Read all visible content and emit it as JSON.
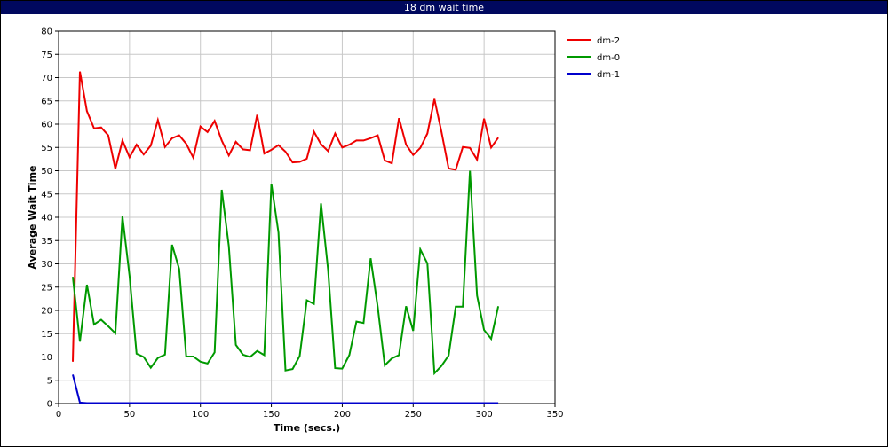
{
  "window": {
    "title": "18 dm wait time"
  },
  "chart_data": {
    "type": "line",
    "title": "",
    "xlabel": "Time (secs.)",
    "ylabel": "Average Wait Time",
    "xlim": [
      0,
      350
    ],
    "ylim": [
      0,
      80
    ],
    "x_ticks": [
      0,
      50,
      100,
      150,
      200,
      250,
      300,
      350
    ],
    "y_ticks": [
      0,
      5,
      10,
      15,
      20,
      25,
      30,
      35,
      40,
      45,
      50,
      55,
      60,
      65,
      70,
      75,
      80
    ],
    "grid": true,
    "legend_position": "top-right-outside",
    "series": [
      {
        "name": "dm-2",
        "color": "#ee0000",
        "points": [
          [
            10,
            9
          ],
          [
            15,
            71.3
          ],
          [
            20,
            62.8
          ],
          [
            25,
            59.1
          ],
          [
            30,
            59.3
          ],
          [
            35,
            57.6
          ],
          [
            40,
            50.4
          ],
          [
            45,
            56.5
          ],
          [
            50,
            52.9
          ],
          [
            55,
            55.6
          ],
          [
            60,
            53.5
          ],
          [
            65,
            55.4
          ],
          [
            70,
            60.9
          ],
          [
            75,
            55.1
          ],
          [
            80,
            57
          ],
          [
            85,
            57.6
          ],
          [
            90,
            55.8
          ],
          [
            95,
            52.8
          ],
          [
            100,
            59.5
          ],
          [
            105,
            58.3
          ],
          [
            110,
            60.7
          ],
          [
            115,
            56.5
          ],
          [
            120,
            53.3
          ],
          [
            125,
            56.2
          ],
          [
            130,
            54.6
          ],
          [
            135,
            54.4
          ],
          [
            140,
            62
          ],
          [
            145,
            53.7
          ],
          [
            150,
            54.5
          ],
          [
            155,
            55.5
          ],
          [
            160,
            54.1
          ],
          [
            165,
            51.8
          ],
          [
            170,
            51.9
          ],
          [
            175,
            52.6
          ],
          [
            180,
            58.4
          ],
          [
            185,
            55.7
          ],
          [
            190,
            54.2
          ],
          [
            195,
            58
          ],
          [
            200,
            55
          ],
          [
            205,
            55.6
          ],
          [
            210,
            56.5
          ],
          [
            215,
            56.5
          ],
          [
            220,
            57
          ],
          [
            225,
            57.6
          ],
          [
            230,
            52.2
          ],
          [
            235,
            51.6
          ],
          [
            240,
            61.3
          ],
          [
            245,
            55.6
          ],
          [
            250,
            53.4
          ],
          [
            255,
            54.9
          ],
          [
            260,
            58
          ],
          [
            265,
            65.4
          ],
          [
            270,
            58.3
          ],
          [
            275,
            50.5
          ],
          [
            280,
            50.2
          ],
          [
            285,
            55.1
          ],
          [
            290,
            54.9
          ],
          [
            295,
            52.4
          ],
          [
            300,
            61.2
          ],
          [
            305,
            55
          ],
          [
            310,
            57.1
          ]
        ]
      },
      {
        "name": "dm-0",
        "color": "#009900",
        "points": [
          [
            10,
            27.2
          ],
          [
            15,
            13.3
          ],
          [
            20,
            25.5
          ],
          [
            25,
            17
          ],
          [
            30,
            18
          ],
          [
            35,
            16.6
          ],
          [
            40,
            15.1
          ],
          [
            45,
            40.2
          ],
          [
            50,
            27.4
          ],
          [
            55,
            10.7
          ],
          [
            60,
            10
          ],
          [
            65,
            7.7
          ],
          [
            70,
            9.8
          ],
          [
            75,
            10.5
          ],
          [
            80,
            34.1
          ],
          [
            85,
            28.9
          ],
          [
            90,
            10.1
          ],
          [
            95,
            10.1
          ],
          [
            100,
            9
          ],
          [
            105,
            8.6
          ],
          [
            110,
            11
          ],
          [
            115,
            45.9
          ],
          [
            120,
            33.8
          ],
          [
            125,
            12.6
          ],
          [
            130,
            10.5
          ],
          [
            135,
            10
          ],
          [
            140,
            11.3
          ],
          [
            145,
            10.4
          ],
          [
            150,
            47.2
          ],
          [
            155,
            36.7
          ],
          [
            160,
            7.1
          ],
          [
            165,
            7.4
          ],
          [
            170,
            10.2
          ],
          [
            175,
            22.2
          ],
          [
            180,
            21.4
          ],
          [
            185,
            43
          ],
          [
            190,
            28.7
          ],
          [
            195,
            7.6
          ],
          [
            200,
            7.5
          ],
          [
            205,
            10.4
          ],
          [
            210,
            17.6
          ],
          [
            215,
            17.3
          ],
          [
            220,
            31.2
          ],
          [
            225,
            20.7
          ],
          [
            230,
            8.2
          ],
          [
            235,
            9.7
          ],
          [
            240,
            10.4
          ],
          [
            245,
            20.9
          ],
          [
            250,
            15.6
          ],
          [
            255,
            33.1
          ],
          [
            260,
            30.1
          ],
          [
            265,
            6.5
          ],
          [
            270,
            8.1
          ],
          [
            275,
            10.3
          ],
          [
            280,
            20.8
          ],
          [
            285,
            20.8
          ],
          [
            290,
            50
          ],
          [
            295,
            23.2
          ],
          [
            300,
            15.8
          ],
          [
            305,
            13.9
          ],
          [
            310,
            20.9
          ]
        ]
      },
      {
        "name": "dm-1",
        "color": "#0000cc",
        "points": [
          [
            10,
            6.2
          ],
          [
            15,
            0.2
          ],
          [
            20,
            0.1
          ],
          [
            40,
            0.1
          ],
          [
            80,
            0.1
          ],
          [
            120,
            0.1
          ],
          [
            160,
            0.1
          ],
          [
            200,
            0.1
          ],
          [
            240,
            0.1
          ],
          [
            280,
            0.1
          ],
          [
            310,
            0.1
          ]
        ]
      }
    ]
  }
}
